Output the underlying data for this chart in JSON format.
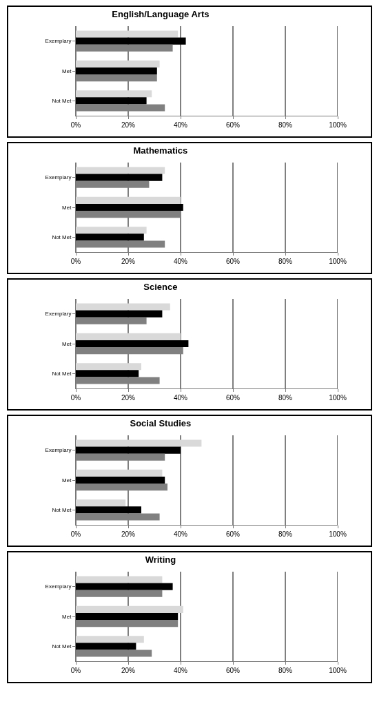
{
  "chart_data": [
    {
      "type": "bar",
      "orientation": "horizontal",
      "title": "English/Language Arts",
      "categories": [
        "Exemplary",
        "Met",
        "Not Met"
      ],
      "series": [
        {
          "color": "#d9d9d9",
          "values": [
            39,
            32,
            29
          ]
        },
        {
          "color": "#000000",
          "values": [
            42,
            31,
            27
          ]
        },
        {
          "color": "#808080",
          "values": [
            37,
            31,
            34
          ]
        }
      ],
      "xlim": [
        0,
        100
      ],
      "xticks": [
        {
          "value": 0,
          "label": "0%"
        },
        {
          "value": 20,
          "label": "20%"
        },
        {
          "value": 40,
          "label": "40%"
        },
        {
          "value": 60,
          "label": "60%"
        },
        {
          "value": 80,
          "label": "80%"
        },
        {
          "value": 100,
          "label": "100%"
        }
      ],
      "grid": "x"
    },
    {
      "type": "bar",
      "orientation": "horizontal",
      "title": "Mathematics",
      "categories": [
        "Exemplary",
        "Met",
        "Not Met"
      ],
      "series": [
        {
          "color": "#d9d9d9",
          "values": [
            34,
            40,
            27
          ]
        },
        {
          "color": "#000000",
          "values": [
            33,
            41,
            26
          ]
        },
        {
          "color": "#808080",
          "values": [
            28,
            40,
            34
          ]
        }
      ],
      "xlim": [
        0,
        100
      ],
      "xticks": [
        {
          "value": 0,
          "label": "0%"
        },
        {
          "value": 20,
          "label": "20%"
        },
        {
          "value": 40,
          "label": "40%"
        },
        {
          "value": 60,
          "label": "60%"
        },
        {
          "value": 80,
          "label": "80%"
        },
        {
          "value": 100,
          "label": "100%"
        }
      ],
      "grid": "x"
    },
    {
      "type": "bar",
      "orientation": "horizontal",
      "title": "Science",
      "categories": [
        "Exemplary",
        "Met",
        "Not Met"
      ],
      "series": [
        {
          "color": "#d9d9d9",
          "values": [
            36,
            40,
            25
          ]
        },
        {
          "color": "#000000",
          "values": [
            33,
            43,
            24
          ]
        },
        {
          "color": "#808080",
          "values": [
            27,
            41,
            32
          ]
        }
      ],
      "xlim": [
        0,
        100
      ],
      "xticks": [
        {
          "value": 0,
          "label": "0%"
        },
        {
          "value": 20,
          "label": "20%"
        },
        {
          "value": 40,
          "label": "40%"
        },
        {
          "value": 60,
          "label": "60%"
        },
        {
          "value": 80,
          "label": "80%"
        },
        {
          "value": 100,
          "label": "100%"
        }
      ],
      "grid": "x"
    },
    {
      "type": "bar",
      "orientation": "horizontal",
      "title": "Social Studies",
      "categories": [
        "Exemplary",
        "Met",
        "Not Met"
      ],
      "series": [
        {
          "color": "#d9d9d9",
          "values": [
            48,
            33,
            19
          ]
        },
        {
          "color": "#000000",
          "values": [
            40,
            34,
            25
          ]
        },
        {
          "color": "#808080",
          "values": [
            34,
            35,
            32
          ]
        }
      ],
      "xlim": [
        0,
        100
      ],
      "xticks": [
        {
          "value": 0,
          "label": "0%"
        },
        {
          "value": 20,
          "label": "20%"
        },
        {
          "value": 40,
          "label": "40%"
        },
        {
          "value": 60,
          "label": "60%"
        },
        {
          "value": 80,
          "label": "80%"
        },
        {
          "value": 100,
          "label": "100%"
        }
      ],
      "grid": "x"
    },
    {
      "type": "bar",
      "orientation": "horizontal",
      "title": "Writing",
      "categories": [
        "Exemplary",
        "Met",
        "Not Met"
      ],
      "series": [
        {
          "color": "#d9d9d9",
          "values": [
            33,
            41,
            26
          ]
        },
        {
          "color": "#000000",
          "values": [
            37,
            39,
            23
          ]
        },
        {
          "color": "#808080",
          "values": [
            33,
            39,
            29
          ]
        }
      ],
      "xlim": [
        0,
        100
      ],
      "xticks": [
        {
          "value": 0,
          "label": "0%"
        },
        {
          "value": 20,
          "label": "20%"
        },
        {
          "value": 40,
          "label": "40%"
        },
        {
          "value": 60,
          "label": "60%"
        },
        {
          "value": 80,
          "label": "80%"
        },
        {
          "value": 100,
          "label": "100%"
        }
      ],
      "grid": "x"
    }
  ]
}
